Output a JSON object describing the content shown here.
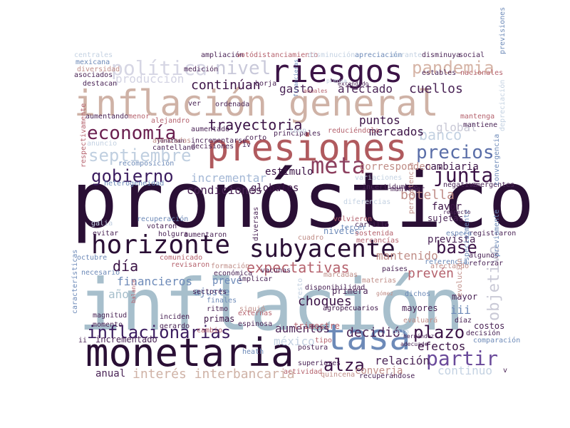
{
  "words": [
    {
      "text": "pronóstico",
      "color": "#2a0f35"
    },
    {
      "text": "inflación",
      "color": "#a7bfcc"
    },
    {
      "text": "presiones",
      "color": "#b05a5e"
    },
    {
      "text": "inflación general",
      "color": "#cfb2a6"
    },
    {
      "text": "monetaria",
      "color": "#2a0f35"
    },
    {
      "text": "tasa",
      "color": "#6d8ab8"
    },
    {
      "text": "riesgos",
      "color": "#3b1346"
    },
    {
      "text": "horizonte",
      "color": "#2a0f35"
    },
    {
      "text": "subyacente",
      "color": "#2a0f35"
    },
    {
      "text": "meta",
      "color": "#8c3f5e"
    },
    {
      "text": "economía",
      "color": "#6a1f4f"
    },
    {
      "text": "septiembre",
      "color": "#c0cfe0"
    },
    {
      "text": "gobierno",
      "color": "#3a1b5e"
    },
    {
      "text": "junta",
      "color": "#3b1346"
    },
    {
      "text": "precios",
      "color": "#5a6ea8"
    },
    {
      "text": "política",
      "color": "#d6d6e4"
    },
    {
      "text": "nivel",
      "color": "#c9c9da"
    },
    {
      "text": "pandemia",
      "color": "#d6b4a6"
    },
    {
      "text": "trayectoria",
      "color": "#3b1346"
    },
    {
      "text": "expectativas",
      "color": "#b5626d"
    },
    {
      "text": "base",
      "color": "#3b1346"
    },
    {
      "text": "inflacionarias",
      "color": "#3a1b5e"
    },
    {
      "text": "partir",
      "color": "#6a4a9a"
    },
    {
      "text": "plazo",
      "color": "#3b1346"
    },
    {
      "text": "objetivo",
      "color": "#c9c9d6"
    },
    {
      "text": "alza",
      "color": "#3b1346"
    },
    {
      "text": "día",
      "color": "#3b1346"
    },
    {
      "text": "decidió",
      "color": "#4a2456"
    },
    {
      "text": "choques",
      "color": "#3b1346"
    },
    {
      "text": "banco",
      "color": "#c4d2e2"
    },
    {
      "text": "continúan",
      "color": "#3b1346"
    },
    {
      "text": "producción",
      "color": "#d3d3e3"
    },
    {
      "text": "gasto",
      "color": "#4a2456"
    },
    {
      "text": "afectado",
      "color": "#4a2456"
    },
    {
      "text": "cuellos",
      "color": "#4a2456"
    },
    {
      "text": "incrementar",
      "color": "#a4b8d6"
    },
    {
      "text": "condiciones",
      "color": "#4a2456"
    },
    {
      "text": "estímulo",
      "color": "#3b1346"
    },
    {
      "text": "puntos",
      "color": "#3b1346"
    },
    {
      "text": "mercados",
      "color": "#3b1346"
    },
    {
      "text": "global",
      "color": "#c9c9d6"
    },
    {
      "text": "globales",
      "color": "#3b1346"
    },
    {
      "text": "corresponden",
      "color": "#c08e88"
    },
    {
      "text": "cambiaria",
      "color": "#3b1346"
    },
    {
      "text": "botella",
      "color": "#c08e88"
    },
    {
      "text": "mantenido",
      "color": "#c08e88"
    },
    {
      "text": "prevén",
      "color": "#b5626d"
    },
    {
      "text": "financieros",
      "color": "#6d8ab8"
    },
    {
      "text": "año",
      "color": "#a7bfcc"
    },
    {
      "text": "interés interbancaria",
      "color": "#cfb2a6"
    },
    {
      "text": "aumentos",
      "color": "#4a2456"
    },
    {
      "text": "méxico",
      "color": "#c4d2e2"
    },
    {
      "text": "efectos",
      "color": "#3b1346"
    },
    {
      "text": "relación",
      "color": "#4a2456"
    },
    {
      "text": "continuo",
      "color": "#c4d2e2"
    },
    {
      "text": "favor",
      "color": "#3b1346"
    },
    {
      "text": "prevista",
      "color": "#4a2456"
    },
    {
      "text": "sujetas",
      "color": "#4a2456"
    },
    {
      "text": "ajuste",
      "color": "#6d8ab8"
    },
    {
      "text": "prevé",
      "color": "#6d8ab8"
    },
    {
      "text": "primas",
      "color": "#3b1346"
    },
    {
      "text": "primera",
      "color": "#4a2456"
    },
    {
      "text": "agropecuarios",
      "color": "#3b1346"
    },
    {
      "text": "trimestre",
      "color": "#b5626d"
    },
    {
      "text": "niveles",
      "color": "#6d8ab8"
    },
    {
      "text": "iii",
      "color": "#6d8ab8"
    },
    {
      "text": "costos",
      "color": "#4a2456"
    },
    {
      "text": "mayor",
      "color": "#4a2456"
    },
    {
      "text": "anual",
      "color": "#4a2456"
    },
    {
      "text": "incrementado",
      "color": "#4a2456"
    },
    {
      "text": "superiores",
      "color": "#4a2456"
    },
    {
      "text": "actividad",
      "color": "#b5626d"
    },
    {
      "text": "converja",
      "color": "#c08e88"
    },
    {
      "text": "recuperándose",
      "color": "#4a2456"
    },
    {
      "text": "mayores",
      "color": "#4a2456"
    },
    {
      "text": "evaluará",
      "color": "#c08e88"
    },
    {
      "text": "tipo",
      "color": "#b5626d"
    },
    {
      "text": "postura",
      "color": "#4a2456"
    },
    {
      "text": "magnitud",
      "color": "#4a2456"
    },
    {
      "text": "momento",
      "color": "#4a2456"
    },
    {
      "text": "inciden",
      "color": "#4a2456"
    },
    {
      "text": "gerardo",
      "color": "#4a2456"
    },
    {
      "text": "cambio",
      "color": "#b5626d"
    },
    {
      "text": "ritmo",
      "color": "#4a2456"
    },
    {
      "text": "externas",
      "color": "#b5626d"
    },
    {
      "text": "espinosa",
      "color": "#4a2456"
    },
    {
      "text": "sectores",
      "color": "#4a2456"
    },
    {
      "text": "finales",
      "color": "#6d8ab8"
    },
    {
      "text": "implicar",
      "color": "#4a2456"
    },
    {
      "text": "disponibilidad",
      "color": "#4a2456"
    },
    {
      "text": "países",
      "color": "#4a2456"
    },
    {
      "text": "vacunas",
      "color": "#4a2456"
    },
    {
      "text": "marcadas",
      "color": "#c08e88"
    },
    {
      "text": "materias",
      "color": "#c08e88"
    },
    {
      "text": "dichos",
      "color": "#6d8ab8"
    },
    {
      "text": "gómez",
      "color": "#c08e88"
    },
    {
      "text": "octubre",
      "color": "#6d8ab8"
    },
    {
      "text": "comunicado",
      "color": "#b5626d"
    },
    {
      "text": "revisaron",
      "color": "#b5626d"
    },
    {
      "text": "necesario",
      "color": "#6d8ab8"
    },
    {
      "text": "holgura",
      "color": "#4a2456"
    },
    {
      "text": "aumentaron",
      "color": "#4a2456"
    },
    {
      "text": "votaron",
      "color": "#4a2456"
    },
    {
      "text": "recuperación",
      "color": "#6d8ab8"
    },
    {
      "text": "mercancías",
      "color": "#b5626d"
    },
    {
      "text": "sostenida",
      "color": "#b5626d"
    },
    {
      "text": "carrillo",
      "color": "#4a2456"
    },
    {
      "text": "volvieron",
      "color": "#b5626d"
    },
    {
      "text": "diversas",
      "color": "#4a2456"
    },
    {
      "text": "cuadro",
      "color": "#c08e88"
    },
    {
      "text": "incertidumbre",
      "color": "#4a2456"
    },
    {
      "text": "negativa",
      "color": "#4a2456"
    },
    {
      "text": "emergentes",
      "color": "#4a2456"
    },
    {
      "text": "heterogeneidad",
      "color": "#6d8ab8"
    },
    {
      "text": "recomposición",
      "color": "#6d8ab8"
    },
    {
      "text": "anuncio",
      "color": "#c4d2e2"
    },
    {
      "text": "avanzadas",
      "color": "#c08e88"
    },
    {
      "text": "cantellano",
      "color": "#4a2456"
    },
    {
      "text": "incrementarse",
      "color": "#4a2456"
    },
    {
      "text": "decisiones",
      "color": "#4a2456"
    },
    {
      "text": "aumentando",
      "color": "#4a2456"
    },
    {
      "text": "menor",
      "color": "#b5626d"
    },
    {
      "text": "alejandro",
      "color": "#b5626d"
    },
    {
      "text": "aumentado",
      "color": "#4a2456"
    },
    {
      "text": "principales",
      "color": "#4a2456"
    },
    {
      "text": "reduciéndolo",
      "color": "#b5626d"
    },
    {
      "text": "ordenada",
      "color": "#4a2456"
    },
    {
      "text": "mexicana",
      "color": "#6d8ab8"
    },
    {
      "text": "diversidad",
      "color": "#c08e88"
    },
    {
      "text": "asociados",
      "color": "#4a2456"
    },
    {
      "text": "centrales",
      "color": "#c4d2e2"
    },
    {
      "text": "ampliación",
      "color": "#4a2456"
    },
    {
      "text": "votó",
      "color": "#b5626d"
    },
    {
      "text": "distanciamiento",
      "color": "#b5626d"
    },
    {
      "text": "disminución",
      "color": "#c4d2e2"
    },
    {
      "text": "apreciación",
      "color": "#6d8ab8"
    },
    {
      "text": "durante",
      "color": "#c4d2e2"
    },
    {
      "text": "disminuya",
      "color": "#4a2456"
    },
    {
      "text": "social",
      "color": "#4a2456"
    },
    {
      "text": "estables",
      "color": "#4a2456"
    },
    {
      "text": "nacionales",
      "color": "#b5626d"
    },
    {
      "text": "previsiones",
      "color": "#6d8ab8"
    },
    {
      "text": "destacan",
      "color": "#4a2456"
    },
    {
      "text": "medición",
      "color": "#4a2456"
    },
    {
      "text": "borja",
      "color": "#4a2456"
    },
    {
      "text": "mantenga",
      "color": "#b5626d"
    },
    {
      "text": "mantiene",
      "color": "#4a2456"
    },
    {
      "text": "depreciación",
      "color": "#c4d2e2"
    },
    {
      "text": "mantener",
      "color": "#4a2456"
    },
    {
      "text": "variaciones",
      "color": "#c4d2e2"
    },
    {
      "text": "especialmente",
      "color": "#6d8ab8"
    },
    {
      "text": "referencia",
      "color": "#6d8ab8"
    },
    {
      "text": "afectando",
      "color": "#c08e88"
    },
    {
      "text": "reforzar",
      "color": "#4a2456"
    },
    {
      "text": "algunos",
      "color": "#4a2456"
    },
    {
      "text": "registraron",
      "color": "#4a2456"
    },
    {
      "text": "previamente",
      "color": "#6d8ab8"
    },
    {
      "text": "evolución",
      "color": "#c08e88"
    },
    {
      "text": "decisión",
      "color": "#4a2456"
    },
    {
      "text": "comparación",
      "color": "#6d8ab8"
    },
    {
      "text": "díaz",
      "color": "#4a2456"
    },
    {
      "text": "convergencia",
      "color": "#6d8ab8"
    },
    {
      "text": "persistencia",
      "color": "#c08e88"
    },
    {
      "text": "espera",
      "color": "#6d8ab8"
    },
    {
      "text": "respecto",
      "color": "#4a2456"
    },
    {
      "text": "hernández",
      "color": "#4a2456"
    },
    {
      "text": "adecuado",
      "color": "#4a2456"
    },
    {
      "text": "extendido",
      "color": "#4a2456"
    },
    {
      "text": "prensa",
      "color": "#c4d2e2"
    },
    {
      "text": "anuales",
      "color": "#b5626d"
    },
    {
      "text": "financieras",
      "color": "#6d8ab8"
    },
    {
      "text": "características",
      "color": "#6d8ab8"
    },
    {
      "text": "respectivamente",
      "color": "#b5626d"
    },
    {
      "text": "balance",
      "color": "#b5626d"
    },
    {
      "text": "ver",
      "color": "#4a2456"
    },
    {
      "text": "corto",
      "color": "#4a2456"
    },
    {
      "text": "iv",
      "color": "#4a2456"
    },
    {
      "text": "galia",
      "color": "#c4d2e2"
    },
    {
      "text": "evitar",
      "color": "#4a2456"
    },
    {
      "text": "jonathan",
      "color": "#4a2456"
    },
    {
      "text": "ii",
      "color": "#4a2456"
    },
    {
      "text": "heath",
      "color": "#6d8ab8"
    },
    {
      "text": "quincena",
      "color": "#c08e88"
    },
    {
      "text": "económica",
      "color": "#4a2456"
    },
    {
      "text": "formación",
      "color": "#c08e88"
    },
    {
      "text": "siguió",
      "color": "#c08e88"
    },
    {
      "text": "resto",
      "color": "#c4d2e2"
    },
    {
      "text": "leon",
      "color": "#c4d2e2"
    },
    {
      "text": "tercer",
      "color": "#6d8ab8"
    },
    {
      "text": "diferencias",
      "color": "#c4d2e2"
    },
    {
      "text": "bajo",
      "color": "#c4d2e2"
    },
    {
      "text": "v",
      "color": "#4a2456"
    }
  ]
}
